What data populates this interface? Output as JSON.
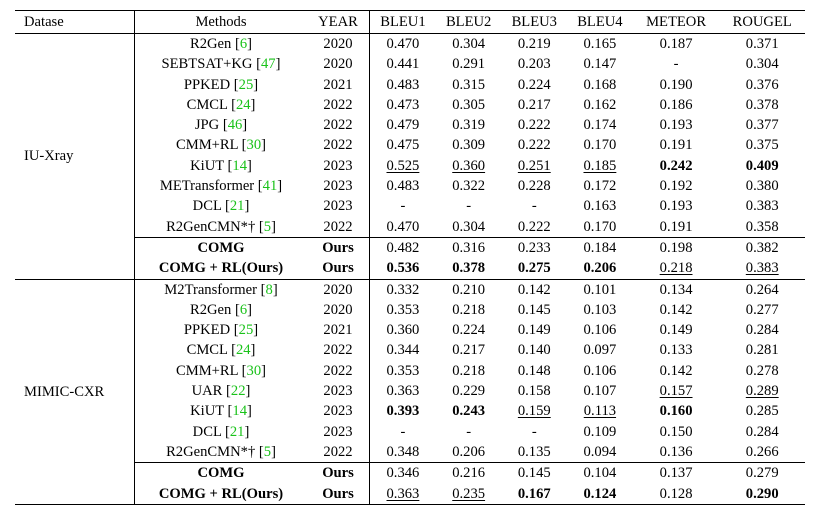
{
  "headers": [
    "Datase",
    "Methods",
    "YEAR",
    "BLEU1",
    "BLEU2",
    "BLEU3",
    "BLEU4",
    "METEOR",
    "ROUGEL"
  ],
  "blocks": [
    {
      "dataset": "IU-Xray",
      "rows": [
        {
          "method": "R2Gen",
          "ref": "6",
          "year": "2020",
          "vals": [
            "0.470",
            "0.304",
            "0.219",
            "0.165",
            "0.187",
            "0.371"
          ]
        },
        {
          "method": "SEBTSAT+KG",
          "ref": "47",
          "year": "2020",
          "vals": [
            "0.441",
            "0.291",
            "0.203",
            "0.147",
            "-",
            "0.304"
          ]
        },
        {
          "method": "PPKED",
          "ref": "25",
          "year": "2021",
          "vals": [
            "0.483",
            "0.315",
            "0.224",
            "0.168",
            "0.190",
            "0.376"
          ]
        },
        {
          "method": "CMCL",
          "ref": "24",
          "year": "2022",
          "vals": [
            "0.473",
            "0.305",
            "0.217",
            "0.162",
            "0.186",
            "0.378"
          ]
        },
        {
          "method": "JPG",
          "ref": "46",
          "year": "2022",
          "vals": [
            "0.479",
            "0.319",
            "0.222",
            "0.174",
            "0.193",
            "0.377"
          ]
        },
        {
          "method": "CMM+RL",
          "ref": "30",
          "year": "2022",
          "vals": [
            "0.475",
            "0.309",
            "0.222",
            "0.170",
            "0.191",
            "0.375"
          ]
        },
        {
          "method": "KiUT",
          "ref": "14",
          "year": "2023",
          "vals": [
            "0.525",
            "0.360",
            "0.251",
            "0.185",
            "0.242",
            "0.409"
          ]
        },
        {
          "method": "METransformer",
          "ref": "41",
          "year": "2023",
          "vals": [
            "0.483",
            "0.322",
            "0.228",
            "0.172",
            "0.192",
            "0.380"
          ]
        },
        {
          "method": "DCL",
          "ref": "21",
          "year": "2023",
          "vals": [
            "-",
            "-",
            "-",
            "0.163",
            "0.193",
            "0.383"
          ]
        },
        {
          "method": "R2GenCMN*†",
          "ref": "5",
          "year": "2022",
          "vals": [
            "0.470",
            "0.304",
            "0.222",
            "0.170",
            "0.191",
            "0.358"
          ]
        },
        {
          "method": "COMG",
          "ref": "",
          "year": "Ours",
          "vals": [
            "0.482",
            "0.316",
            "0.233",
            "0.184",
            "0.198",
            "0.382"
          ]
        },
        {
          "method": "COMG + RL(Ours)",
          "ref": "",
          "year": "Ours",
          "vals": [
            "0.536",
            "0.378",
            "0.275",
            "0.206",
            "0.218",
            "0.383"
          ]
        }
      ]
    },
    {
      "dataset": "MIMIC-CXR",
      "rows": [
        {
          "method": "M2Transformer",
          "ref": "8",
          "year": "2020",
          "vals": [
            "0.332",
            "0.210",
            "0.142",
            "0.101",
            "0.134",
            "0.264"
          ]
        },
        {
          "method": "R2Gen",
          "ref": "6",
          "year": "2020",
          "vals": [
            "0.353",
            "0.218",
            "0.145",
            "0.103",
            "0.142",
            "0.277"
          ]
        },
        {
          "method": "PPKED",
          "ref": "25",
          "year": "2021",
          "vals": [
            "0.360",
            "0.224",
            "0.149",
            "0.106",
            "0.149",
            "0.284"
          ]
        },
        {
          "method": "CMCL",
          "ref": "24",
          "year": "2022",
          "vals": [
            "0.344",
            "0.217",
            "0.140",
            "0.097",
            "0.133",
            "0.281"
          ]
        },
        {
          "method": "CMM+RL",
          "ref": "30",
          "year": "2022",
          "vals": [
            "0.353",
            "0.218",
            "0.148",
            "0.106",
            "0.142",
            "0.278"
          ]
        },
        {
          "method": "UAR",
          "ref": "22",
          "year": "2023",
          "vals": [
            "0.363",
            "0.229",
            "0.158",
            "0.107",
            "0.157",
            "0.289"
          ]
        },
        {
          "method": "KiUT",
          "ref": "14",
          "year": "2023",
          "vals": [
            "0.393",
            "0.243",
            "0.159",
            "0.113",
            "0.160",
            "0.285"
          ]
        },
        {
          "method": "DCL",
          "ref": "21",
          "year": "2023",
          "vals": [
            "-",
            "-",
            "-",
            "0.109",
            "0.150",
            "0.284"
          ]
        },
        {
          "method": "R2GenCMN*†",
          "ref": "5",
          "year": "2022",
          "vals": [
            "0.348",
            "0.206",
            "0.135",
            "0.094",
            "0.136",
            "0.266"
          ]
        },
        {
          "method": "COMG",
          "ref": "",
          "year": "Ours",
          "vals": [
            "0.346",
            "0.216",
            "0.145",
            "0.104",
            "0.137",
            "0.279"
          ]
        },
        {
          "method": "COMG + RL(Ours)",
          "ref": "",
          "year": "Ours",
          "vals": [
            "0.363",
            "0.235",
            "0.167",
            "0.124",
            "0.128",
            "0.290"
          ]
        }
      ]
    }
  ]
}
